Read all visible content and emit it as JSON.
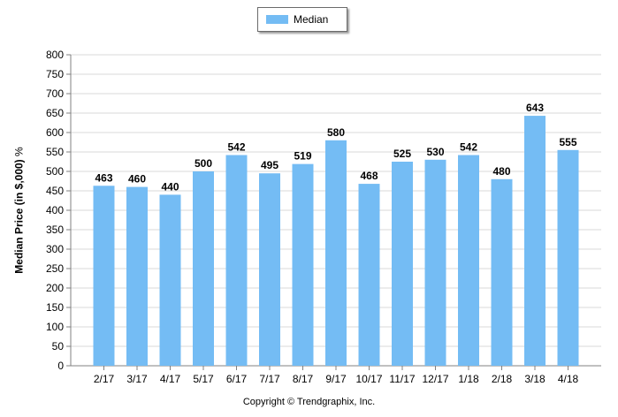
{
  "chart_data": {
    "type": "bar",
    "legend": {
      "label": "Median",
      "placement": "top-center"
    },
    "ylabel": "Median Price (in $,000)",
    "ylabel_suffix": "%",
    "ylim": [
      0,
      800
    ],
    "ytick_step": 50,
    "grid": true,
    "categories": [
      "2/17",
      "3/17",
      "4/17",
      "5/17",
      "6/17",
      "7/17",
      "8/17",
      "9/17",
      "10/17",
      "11/17",
      "12/17",
      "1/18",
      "2/18",
      "3/18",
      "4/18"
    ],
    "series": [
      {
        "name": "Median",
        "values": [
          463,
          460,
          440,
          500,
          542,
          495,
          519,
          580,
          468,
          525,
          530,
          542,
          480,
          643,
          555
        ]
      }
    ]
  },
  "colors": {
    "bar": "#74bcf4",
    "grid": "#d9d9d9",
    "axis": "#808080"
  },
  "footer": {
    "copyright": "Copyright © Trendgraphix, Inc."
  }
}
